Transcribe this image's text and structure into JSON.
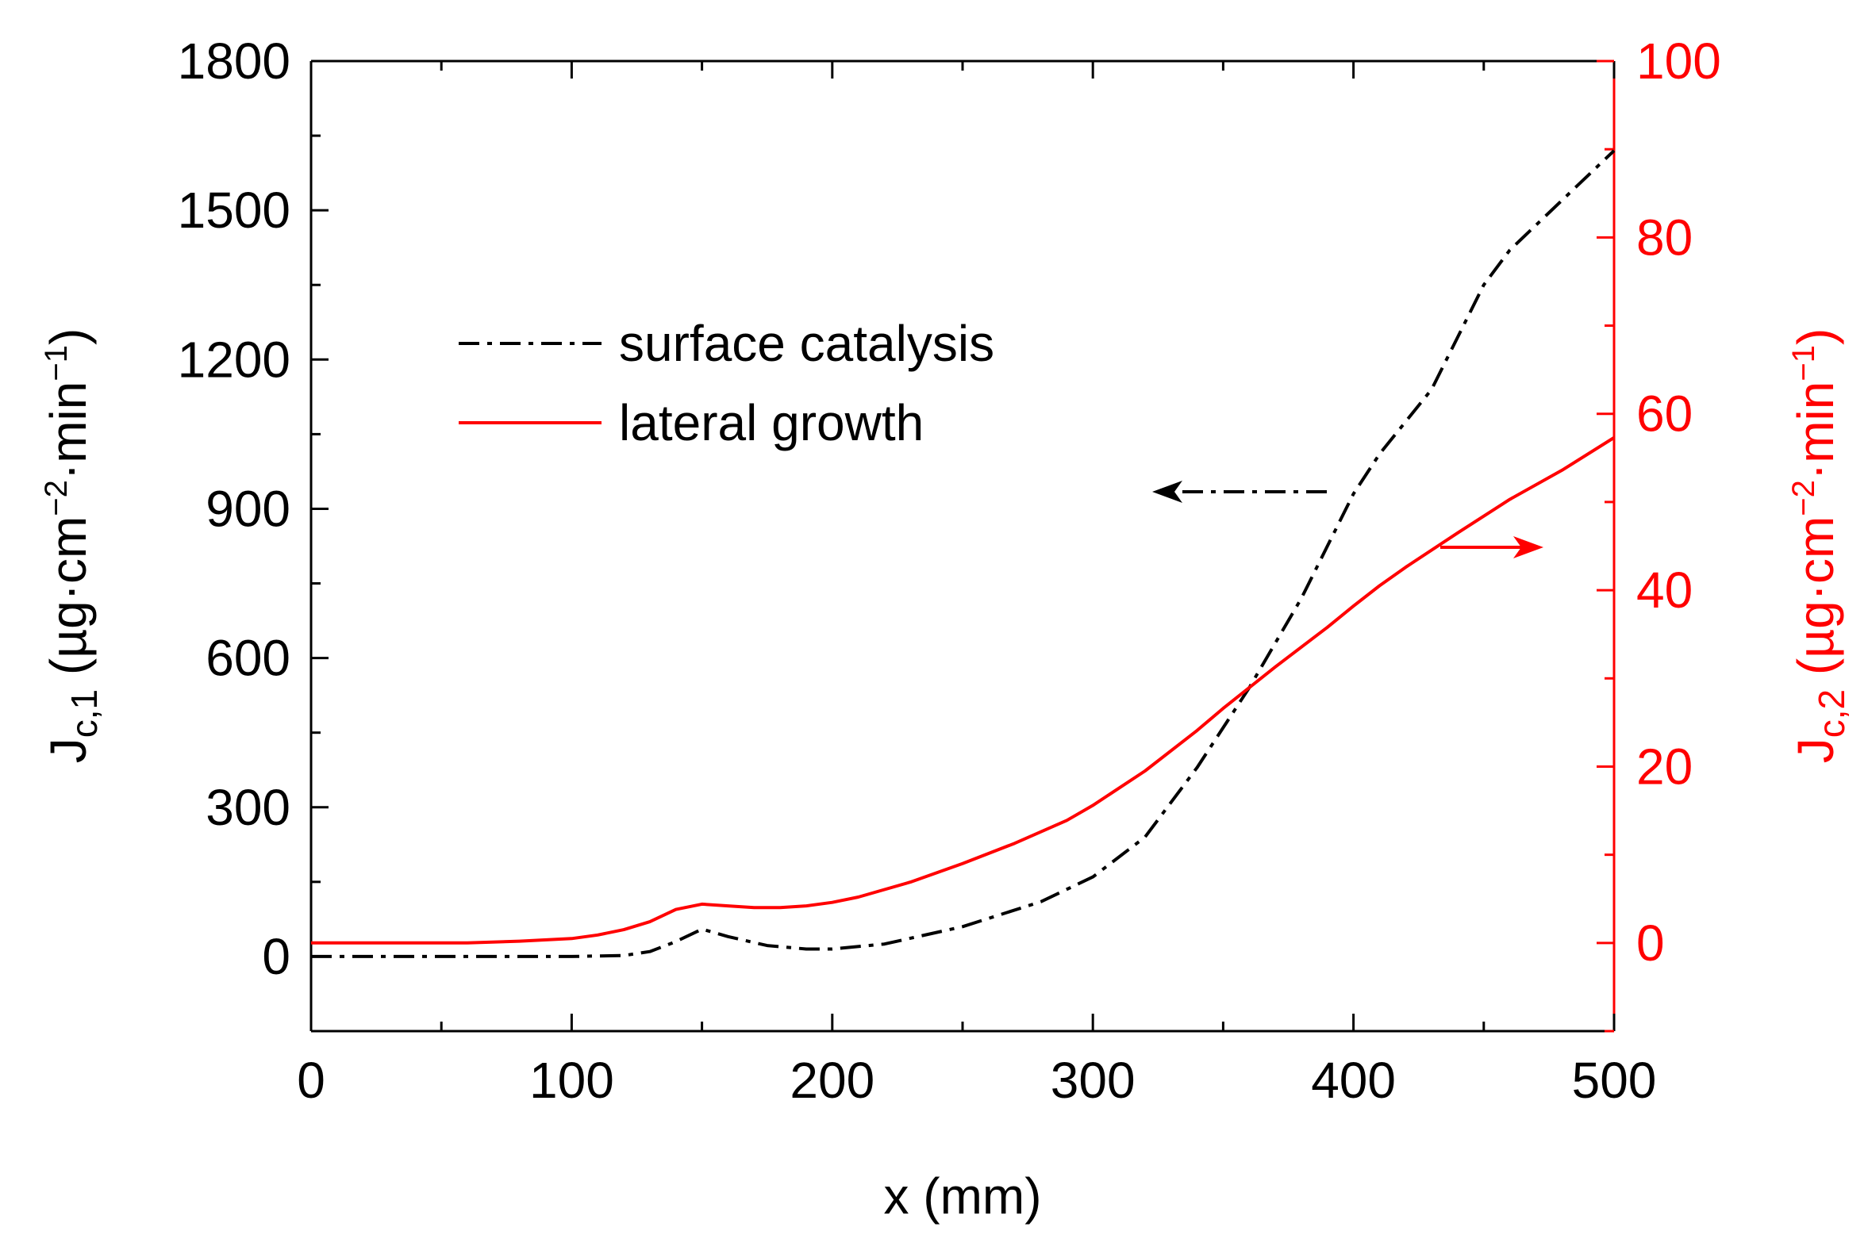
{
  "chart_data": {
    "type": "line",
    "title": "",
    "xlabel": "x (mm)",
    "ylabel_left": {
      "main": "J",
      "sub": "c,1",
      "unit": " (µg·cm",
      "sup1": "−2",
      "mid": "·min",
      "sup2": "−1",
      "close": ")"
    },
    "ylabel_right": {
      "main": "J",
      "sub": "c,2",
      "unit": " (µg·cm",
      "sup1": "−2",
      "mid": "·min",
      "sup2": "−1",
      "close": ")"
    },
    "xlim": [
      0,
      500
    ],
    "ylim_left": [
      -150,
      1800
    ],
    "ylim_right": [
      -10,
      100
    ],
    "xticks": [
      0,
      100,
      200,
      300,
      400,
      500
    ],
    "yticks_left": [
      0,
      300,
      600,
      900,
      1200,
      1500,
      1800
    ],
    "yticks_right": [
      0,
      20,
      40,
      60,
      80,
      100
    ],
    "legend": {
      "position": "upper-left",
      "entries": [
        "surface catalysis",
        "lateral growth"
      ]
    },
    "series": [
      {
        "name": "surface catalysis",
        "axis": "left",
        "color": "#000000",
        "style": "dash-dot",
        "x": [
          0,
          50,
          100,
          120,
          130,
          140,
          150,
          160,
          175,
          190,
          200,
          220,
          250,
          280,
          300,
          320,
          340,
          360,
          380,
          400,
          410,
          430,
          450,
          460,
          480,
          500
        ],
        "y": [
          0,
          0,
          0,
          2,
          10,
          30,
          55,
          40,
          22,
          15,
          15,
          25,
          60,
          110,
          160,
          240,
          380,
          540,
          720,
          930,
          1010,
          1140,
          1350,
          1420,
          1520,
          1620
        ]
      },
      {
        "name": "lateral growth",
        "axis": "right",
        "color": "#ff0000",
        "style": "solid",
        "x": [
          0,
          60,
          80,
          100,
          110,
          120,
          130,
          140,
          150,
          160,
          170,
          180,
          190,
          200,
          210,
          230,
          250,
          270,
          290,
          300,
          320,
          340,
          350,
          370,
          390,
          400,
          410,
          420,
          440,
          460,
          480,
          500
        ],
        "y": [
          0,
          0,
          0.2,
          0.5,
          0.9,
          1.5,
          2.4,
          3.8,
          4.4,
          4.2,
          4.0,
          4.0,
          4.2,
          4.6,
          5.2,
          6.9,
          9.0,
          11.3,
          13.9,
          15.6,
          19.5,
          24.1,
          26.6,
          31.3,
          35.8,
          38.2,
          40.5,
          42.6,
          46.5,
          50.3,
          53.6,
          57.3
        ]
      }
    ],
    "annotations": [
      {
        "text": "arrow-left",
        "points_to": "left axis",
        "color": "#000000"
      },
      {
        "text": "arrow-right",
        "points_to": "right axis",
        "color": "#ff0000"
      }
    ]
  }
}
